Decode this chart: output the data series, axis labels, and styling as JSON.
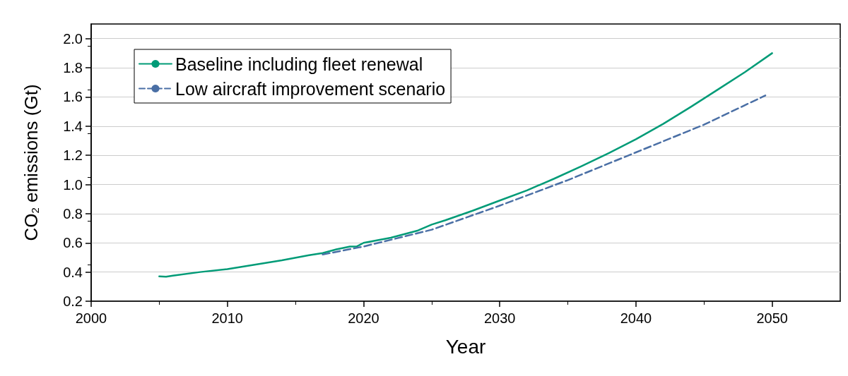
{
  "chart_data": {
    "type": "line",
    "xlabel": "Year",
    "ylabel": "CO$_{2}$ emissions (Gt)",
    "xlim": [
      2000,
      2055
    ],
    "xticks": [
      2000,
      2010,
      2020,
      2030,
      2040,
      2050
    ],
    "ylim": [
      0.2,
      2.1
    ],
    "yticks": [
      {
        "value": 0.2,
        "label": "0.2"
      },
      {
        "value": 0.4,
        "label": "0.4"
      },
      {
        "value": 0.6,
        "label": "0.6"
      },
      {
        "value": 0.8,
        "label": "0.8"
      },
      {
        "value": 1.0,
        "label": "1.0"
      },
      {
        "value": 1.2,
        "label": "1.2"
      },
      {
        "value": 1.4,
        "label": "1.4"
      },
      {
        "value": 1.6,
        "label": "1.6"
      },
      {
        "value": 1.8,
        "label": "1.8"
      },
      {
        "value": 2.0,
        "label": "2.0"
      }
    ],
    "grid": "y",
    "legend": "top left",
    "marker": "none",
    "series": [
      {
        "name": "Baseline including fleet renewal",
        "color": "#009b77",
        "line_style": "solid",
        "x": [
          2005,
          2005.5,
          2006,
          2008,
          2010,
          2012,
          2014,
          2016,
          2017,
          2018,
          2019,
          2019.5,
          2020,
          2022,
          2024,
          2025,
          2026,
          2028,
          2030,
          2032,
          2034,
          2036,
          2038,
          2040,
          2042,
          2044,
          2046,
          2048,
          2050
        ],
        "values": [
          0.37,
          0.368,
          0.375,
          0.4,
          0.42,
          0.45,
          0.48,
          0.515,
          0.53,
          0.555,
          0.575,
          0.575,
          0.6,
          0.635,
          0.685,
          0.725,
          0.755,
          0.82,
          0.89,
          0.96,
          1.04,
          1.125,
          1.215,
          1.31,
          1.415,
          1.53,
          1.65,
          1.77,
          1.9
        ]
      },
      {
        "name": "Low aircraft improvement scenario",
        "color": "#4a6fa5",
        "line_style": "dashed",
        "x": [
          2017,
          2020,
          2025,
          2030,
          2035,
          2040,
          2045,
          2049.5
        ],
        "values": [
          0.52,
          0.575,
          0.69,
          0.855,
          1.03,
          1.22,
          1.41,
          1.61
        ]
      }
    ]
  }
}
